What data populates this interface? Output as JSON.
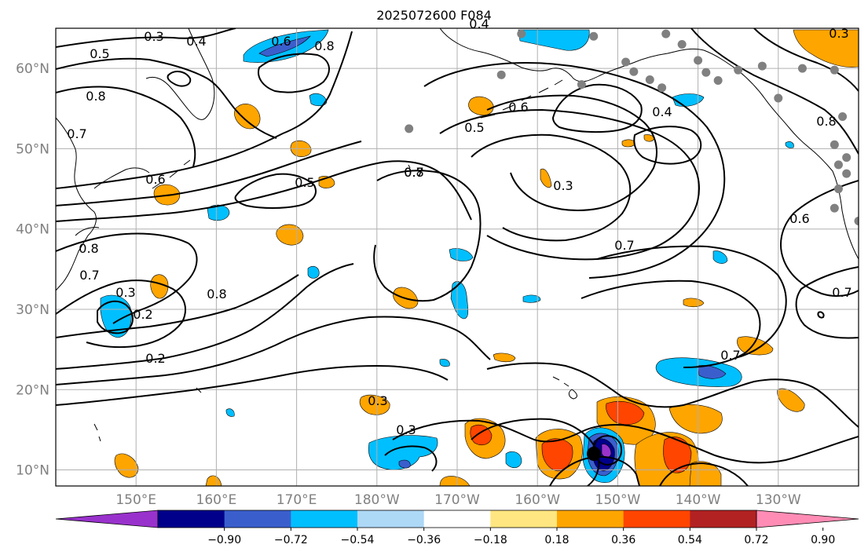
{
  "title": "2025072600 F084",
  "map": {
    "projection": "plate-carree",
    "lon_range_east": [
      140,
      240
    ],
    "lat_range": [
      8,
      65
    ],
    "lat_ticks": [
      "10°N",
      "20°N",
      "30°N",
      "40°N",
      "50°N",
      "60°N"
    ],
    "lon_ticks": [
      "150°E",
      "160°E",
      "170°E",
      "180°W",
      "170°W",
      "160°W",
      "150°W",
      "140°W",
      "130°W"
    ],
    "grid": true,
    "contour_color": "#000000",
    "gridline_color": "#b0b0b0",
    "station_marker_color": "#808080",
    "storm_marker_color": "#000000",
    "contour_labels": [
      "0.3",
      "0.4",
      "0.5",
      "0.6",
      "0.8",
      "0.8",
      "0.7",
      "0.6",
      "0.5",
      "0.8",
      "0.7",
      "0.5",
      "0.6",
      "0.4",
      "0.3",
      "0.7",
      "0.8",
      "0.8",
      "0.7",
      "0.3",
      "0.2",
      "0.2",
      "0.3",
      "0.3",
      "0.7",
      "0.6",
      "0.8",
      "0.7",
      "0.4",
      "0.3"
    ]
  },
  "colorbar": {
    "labels": [
      "−0.90",
      "−0.72",
      "−0.54",
      "−0.36",
      "−0.18",
      "0.18",
      "0.36",
      "0.54",
      "0.72",
      "0.90"
    ],
    "colors": [
      "#9932cc",
      "#00008b",
      "#3a5fcd",
      "#00bfff",
      "#add8f6",
      "#ffffff",
      "#ffe680",
      "#ffa500",
      "#ff4500",
      "#b22222",
      "#ff8cb4"
    ],
    "extend": "both"
  }
}
